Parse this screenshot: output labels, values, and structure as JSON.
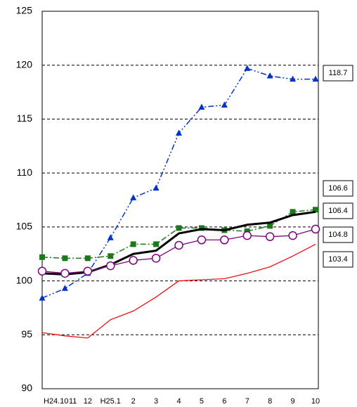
{
  "chart_data": {
    "type": "line",
    "categories": [
      "H24.10",
      "11",
      "12",
      "H25.1",
      "2",
      "3",
      "4",
      "5",
      "6",
      "7",
      "8",
      "9",
      "10"
    ],
    "series": [
      {
        "color": "#0033cc",
        "marker": "triangle",
        "line_style": "dash-dot-dot",
        "values": [
          98.4,
          99.3,
          100.7,
          104.0,
          107.7,
          108.6,
          113.7,
          116.1,
          116.3,
          119.7,
          119.0,
          118.7,
          118.7
        ]
      },
      {
        "color": "#1a7a1a",
        "marker": "square",
        "line_style": "dash-dot",
        "values": [
          102.2,
          102.1,
          102.1,
          102.3,
          103.4,
          103.4,
          104.9,
          104.9,
          104.7,
          104.6,
          105.1,
          106.4,
          106.6
        ]
      },
      {
        "color": "#000000",
        "marker": "none",
        "line_style": "thick",
        "values": [
          100.7,
          100.6,
          100.8,
          101.5,
          102.5,
          102.8,
          104.4,
          104.8,
          104.7,
          105.2,
          105.4,
          106.1,
          106.4
        ]
      },
      {
        "color": "#800080",
        "marker": "circle",
        "line_style": "solid",
        "values": [
          100.9,
          100.7,
          100.9,
          101.4,
          101.9,
          102.1,
          103.3,
          103.8,
          103.8,
          104.2,
          104.1,
          104.2,
          104.8
        ]
      },
      {
        "color": "#ee1111",
        "marker": "none",
        "line_style": "thin",
        "values": [
          95.2,
          94.9,
          94.7,
          96.4,
          97.2,
          98.5,
          100.0,
          100.1,
          100.2,
          100.7,
          101.3,
          102.3,
          103.4
        ]
      }
    ],
    "ylim": [
      90,
      125
    ],
    "yticks": [
      90,
      95,
      100,
      105,
      110,
      115,
      120,
      125
    ],
    "grid": true
  }
}
